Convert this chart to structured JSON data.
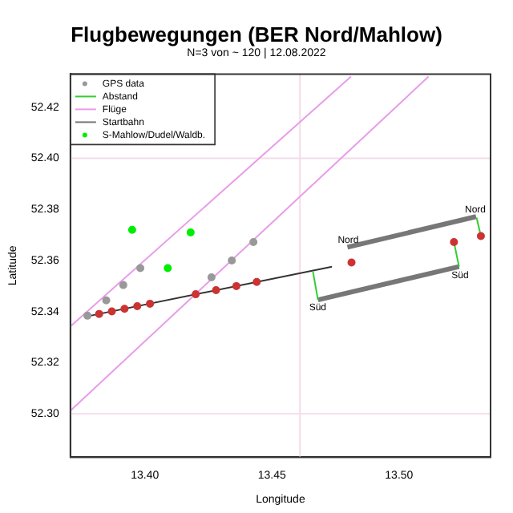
{
  "chart_data": {
    "type": "scatter",
    "title": "Flugbewegungen (BER Nord/Mahlow)",
    "subtitle": "N=3 von ~ 120 | 12.08.2022",
    "xlabel": "Longitude",
    "ylabel": "Latitude",
    "xlim": [
      13.3707,
      13.536
    ],
    "ylim": [
      52.283,
      52.433
    ],
    "xticks": [
      {
        "value": 13.4,
        "label": "13.40"
      },
      {
        "value": 13.45,
        "label": "13.45"
      },
      {
        "value": 13.5,
        "label": "13.50"
      }
    ],
    "yticks": [
      {
        "value": 52.3,
        "label": "52.30"
      },
      {
        "value": 52.32,
        "label": "52.32"
      },
      {
        "value": 52.34,
        "label": "52.34"
      },
      {
        "value": 52.36,
        "label": "52.36"
      },
      {
        "value": 52.38,
        "label": "52.38"
      },
      {
        "value": 52.4,
        "label": "52.40"
      },
      {
        "value": 52.42,
        "label": "52.42"
      }
    ],
    "legend": "top left",
    "grid": false,
    "ref_lines": [
      {
        "axis": "x",
        "value": 13.461,
        "color": "#f4dcea"
      },
      {
        "axis": "y",
        "value": 52.4,
        "color": "#f4dcea"
      },
      {
        "axis": "y",
        "value": 52.3,
        "color": "#f4dcea"
      }
    ],
    "series": [
      {
        "name": "GPS data",
        "marker": "circle",
        "color": "#999999",
        "x": [
          13.382,
          13.387,
          13.392,
          13.397,
          13.402,
          13.42,
          13.428,
          13.436,
          13.444,
          13.3774,
          13.3848,
          13.3915,
          13.3982,
          13.4262,
          13.4342,
          13.4427,
          13.4813,
          13.5216,
          13.5322
        ],
        "values": [
          52.3391,
          52.3401,
          52.3411,
          52.3421,
          52.3431,
          52.3468,
          52.3484,
          52.35,
          52.3516,
          52.3384,
          52.3444,
          52.3504,
          52.357,
          52.3534,
          52.36,
          52.3672,
          52.3592,
          52.3672,
          52.3696
        ],
        "colors": [
          "#cc3333",
          "#cc3333",
          "#cc3333",
          "#cc3333",
          "#cc3333",
          "#cc3333",
          "#cc3333",
          "#cc3333",
          "#cc3333",
          "#999999",
          "#999999",
          "#999999",
          "#999999",
          "#999999",
          "#999999",
          "#999999",
          "#cc3333",
          "#cc3333",
          "#cc3333"
        ]
      },
      {
        "name": "Abstand",
        "type": "line",
        "color": "#33cc33",
        "x": [
          13.4661,
          13.4681
        ],
        "values": [
          52.3558,
          52.3446
        ]
      },
      {
        "type": "line",
        "color": "#33cc33",
        "x": [
          13.5216,
          13.5236
        ],
        "values": [
          52.3672,
          52.3576
        ]
      },
      {
        "type": "line",
        "color": "#33cc33",
        "x": [
          13.5305,
          13.5322
        ],
        "values": [
          52.3768,
          52.3696
        ]
      },
      {
        "name": "Flüge",
        "type": "line",
        "color": "#e89ce8",
        "x": [
          13.3707,
          13.4811
        ],
        "values": [
          52.3342,
          52.432
        ]
      },
      {
        "type": "line",
        "color": "#e89ce8",
        "x": [
          13.3707,
          13.5116
        ],
        "values": [
          52.3012,
          52.432
        ]
      },
      {
        "type": "line",
        "color": "#333333",
        "x": [
          13.3766,
          13.4736
        ],
        "values": [
          52.338,
          52.3576
        ]
      },
      {
        "name": "Startbahn",
        "type": "line",
        "color": "#777777",
        "x": [
          13.4797,
          13.5303
        ],
        "values": [
          52.3652,
          52.3772
        ]
      },
      {
        "type": "line",
        "color": "#777777",
        "x": [
          13.4681,
          13.5236
        ],
        "values": [
          52.3446,
          52.3576
        ]
      },
      {
        "name": "S-Mahlow/Dudel/Waldb.",
        "marker": "circle",
        "color": "#00ee00",
        "x": [
          13.395,
          13.418,
          13.409
        ],
        "values": [
          52.372,
          52.371,
          52.357
        ]
      }
    ],
    "annotations": [
      {
        "text": "Nord",
        "x": 13.48,
        "y": 52.368
      },
      {
        "text": "Nord",
        "x": 13.53,
        "y": 52.38
      },
      {
        "text": "Süd",
        "x": 13.468,
        "y": 52.3416
      },
      {
        "text": "Süd",
        "x": 13.524,
        "y": 52.354
      }
    ]
  }
}
